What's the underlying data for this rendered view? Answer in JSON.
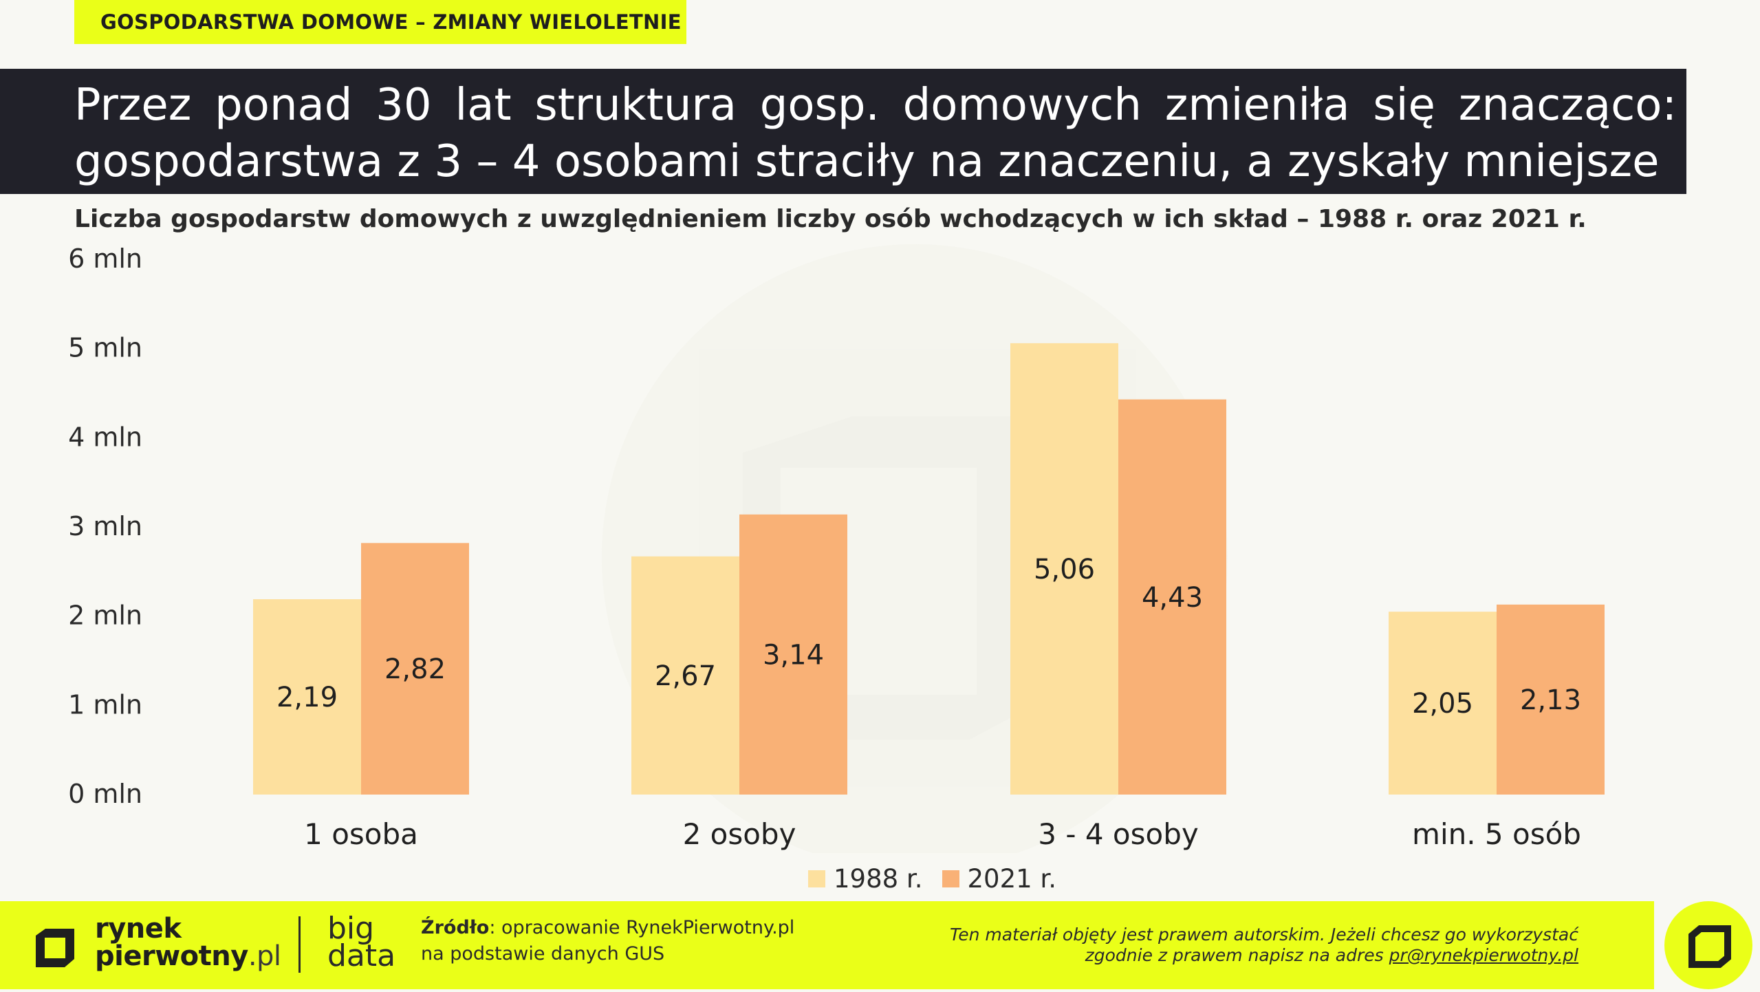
{
  "header": {
    "tag": "GOSPODARSTWA DOMOWE – ZMIANY WIELOLETNIE",
    "headline_line1": "Przez ponad 30 lat struktura gosp. domowych zmieniła się znacząco:",
    "headline_line2": "gospodarstwa z 3 – 4 osobami straciły na znaczeniu, a zyskały mniejsze",
    "subtitle": "Liczba gospodarstw domowych z uwzględnieniem liczby osób wchodzących w ich skład – 1988 r. oraz 2021 r."
  },
  "chart_data": {
    "type": "bar",
    "categories": [
      "1 osoba",
      "2 osoby",
      "3 - 4 osoby",
      "min. 5 osób"
    ],
    "series": [
      {
        "name": "1988 r.",
        "values": [
          2.19,
          2.67,
          5.06,
          2.05
        ],
        "labels": [
          "2,19",
          "2,67",
          "5,06",
          "2,05"
        ],
        "color": "#fde09e"
      },
      {
        "name": "2021 r.",
        "values": [
          2.82,
          3.14,
          4.43,
          2.13
        ],
        "labels": [
          "2,82",
          "3,14",
          "4,43",
          "2,13"
        ],
        "color": "#f9b176"
      }
    ],
    "yticks": [
      "0 mln",
      "1 mln",
      "2 mln",
      "3 mln",
      "4 mln",
      "5 mln",
      "6 mln"
    ],
    "ylim": [
      0,
      6
    ],
    "grid": false,
    "legend": "bottom-center"
  },
  "footer": {
    "logo_line1": "rynek",
    "logo_line2": "pierwotny",
    "logo_suffix": ".pl",
    "bigdata_line1": "big",
    "bigdata_line2": "data",
    "source_label": "Źródło",
    "source_text": ": opracowanie RynekPierwotny.pl",
    "source_text2": "na podstawie danych GUS",
    "copyright_line1": "Ten materiał objęty jest prawem autorskim. Jeżeli chcesz go wykorzystać",
    "copyright_line2": "zgodnie z prawem napisz na adres ",
    "copyright_email": "pr@rynekpierwotny.pl"
  },
  "colors": {
    "accent": "#eaff18",
    "dark": "#212129",
    "bar_1988": "#fde09e",
    "bar_2021": "#f9b176"
  }
}
